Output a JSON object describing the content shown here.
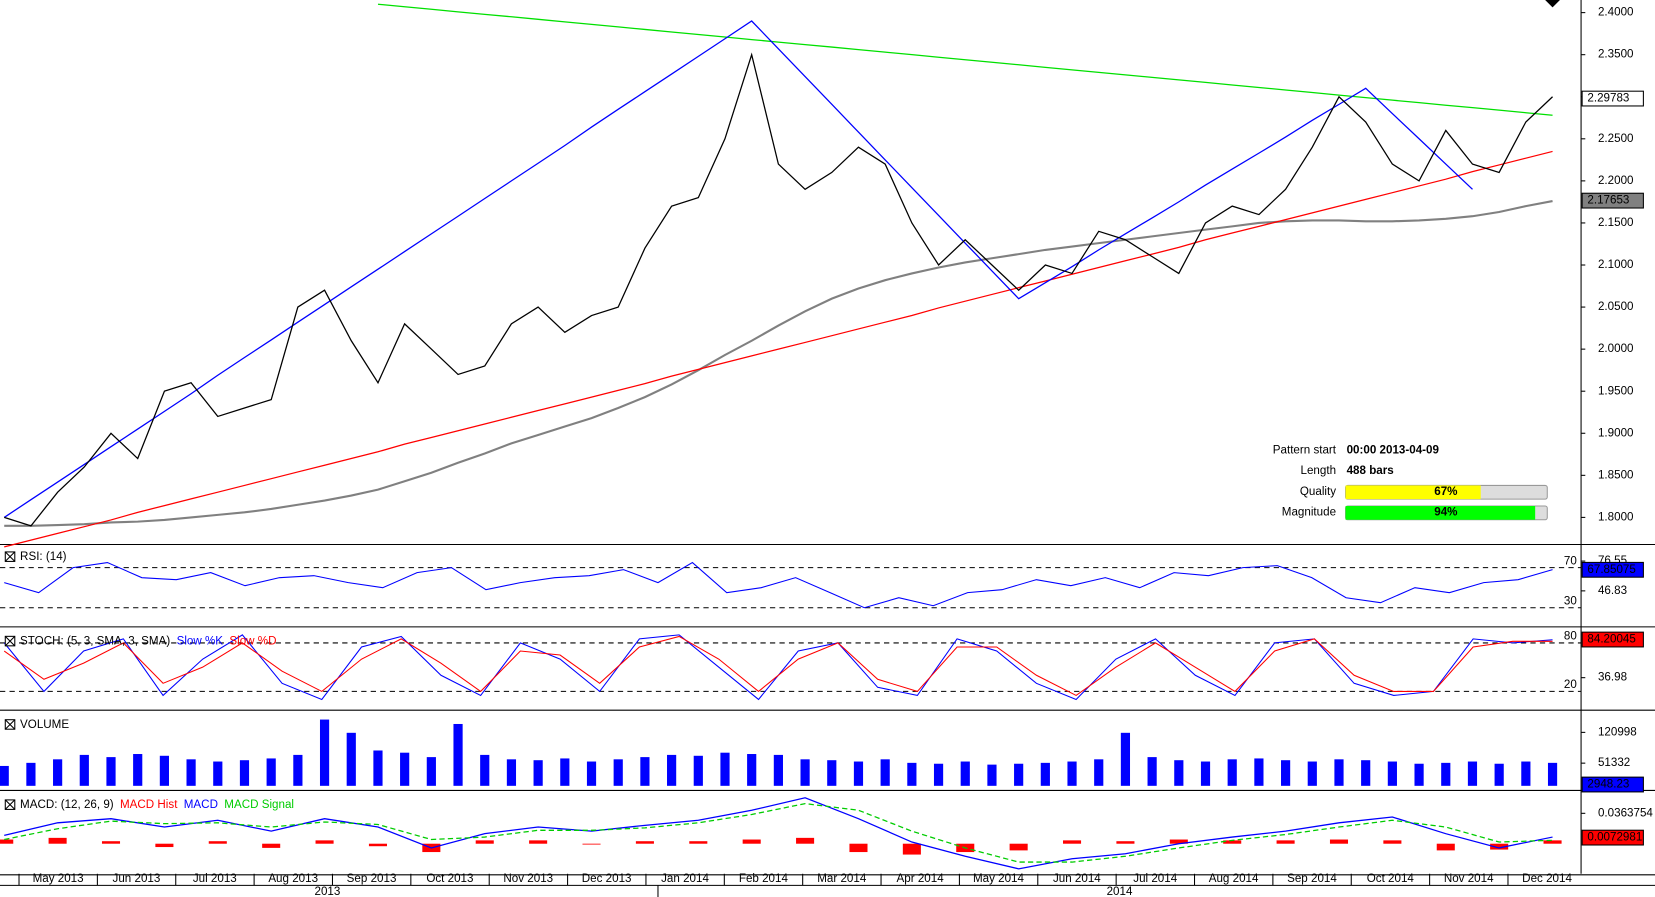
{
  "chart_data": [
    {
      "type": "line",
      "ylim": [
        1.769,
        2.415
      ],
      "yticks": [
        {
          "value": 1.8,
          "label": "1.8000"
        },
        {
          "value": 1.85,
          "label": "1.8500"
        },
        {
          "value": 1.9,
          "label": "1.9000"
        },
        {
          "value": 1.95,
          "label": "1.9500"
        },
        {
          "value": 2.0,
          "label": "2.0000"
        },
        {
          "value": 2.05,
          "label": "2.0500"
        },
        {
          "value": 2.1,
          "label": "2.1000"
        },
        {
          "value": 2.15,
          "label": "2.1500"
        },
        {
          "value": 2.2,
          "label": "2.2000"
        },
        {
          "value": 2.25,
          "label": "2.2500"
        },
        {
          "value": 2.3,
          "label": "2.3000"
        },
        {
          "value": 2.35,
          "label": "2.3500"
        },
        {
          "value": 2.4,
          "label": "2.4000"
        }
      ],
      "grid": false,
      "tags": [
        {
          "value": 2.29783,
          "color": "#ffffff",
          "text_color": "#000000"
        },
        {
          "value": 2.17653,
          "color": "#808080",
          "text_color": "#000000"
        }
      ],
      "series": [
        {
          "color": "#808080",
          "line_width": 2,
          "values": [
            1.79,
            1.79,
            1.791,
            1.792,
            1.794,
            1.795,
            1.797,
            1.8,
            1.803,
            1.806,
            1.81,
            1.815,
            1.82,
            1.826,
            1.833,
            1.843,
            1.853,
            1.865,
            1.876,
            1.888,
            1.898,
            1.908,
            1.918,
            1.93,
            1.943,
            1.958,
            1.975,
            1.993,
            2.01,
            2.028,
            2.045,
            2.06,
            2.072,
            2.082,
            2.09,
            2.097,
            2.103,
            2.108,
            2.113,
            2.118,
            2.122,
            2.126,
            2.13,
            2.134,
            2.138,
            2.142,
            2.146,
            2.15,
            2.152,
            2.153,
            2.153,
            2.152,
            2.152,
            2.153,
            2.155,
            2.158,
            2.163,
            2.17,
            2.176
          ]
        },
        {
          "color": "#ff0000",
          "line_width": 1.2,
          "values": [
            1.765,
            1.773,
            1.781,
            1.789,
            1.797,
            1.806,
            1.814,
            1.822,
            1.83,
            1.838,
            1.846,
            1.854,
            1.862,
            1.87,
            1.878,
            1.887,
            1.895,
            1.903,
            1.911,
            1.919,
            1.927,
            1.935,
            1.943,
            1.951,
            1.959,
            1.968,
            1.976,
            1.984,
            1.992,
            2.0,
            2.008,
            2.016,
            2.024,
            2.032,
            2.04,
            2.049,
            2.057,
            2.065,
            2.073,
            2.081,
            2.089,
            2.097,
            2.105,
            2.113,
            2.121,
            2.13,
            2.138,
            2.146,
            2.154,
            2.162,
            2.17,
            2.178,
            2.186,
            2.194,
            2.202,
            2.211,
            2.219,
            2.227,
            2.235
          ]
        },
        {
          "color": "#00e000",
          "line_width": 1.2,
          "values": [
            null,
            null,
            null,
            null,
            null,
            null,
            null,
            null,
            null,
            null,
            null,
            null,
            null,
            null,
            2.41,
            2.407,
            2.404,
            2.401,
            2.398,
            2.395,
            2.392,
            2.389,
            2.386,
            2.383,
            2.38,
            2.377,
            2.374,
            2.371,
            2.368,
            2.365,
            2.362,
            2.359,
            2.356,
            2.353,
            2.35,
            2.347,
            2.344,
            2.341,
            2.338,
            2.335,
            2.332,
            2.329,
            2.326,
            2.323,
            2.32,
            2.317,
            2.314,
            2.311,
            2.308,
            2.305,
            2.302,
            2.299,
            2.296,
            2.293,
            2.29,
            2.287,
            2.284,
            2.281,
            2.278
          ]
        },
        {
          "color": "#0000ff",
          "line_width": 1.2,
          "values": [
            1.8,
            1.821,
            1.842,
            1.863,
            1.884,
            1.905,
            1.926,
            1.947,
            1.969,
            1.99,
            2.011,
            2.032,
            2.053,
            2.074,
            2.095,
            2.116,
            2.137,
            2.158,
            2.179,
            2.2,
            2.221,
            2.242,
            2.264,
            2.285,
            2.306,
            2.327,
            2.348,
            2.369,
            2.39,
            2.357,
            2.324,
            2.291,
            2.258,
            2.225,
            2.192,
            2.159,
            2.126,
            2.093,
            2.06,
            2.079,
            2.098,
            2.118,
            2.137,
            2.156,
            2.175,
            2.195,
            2.214,
            2.233,
            2.252,
            2.272,
            2.291,
            2.31,
            2.28,
            2.25,
            2.22,
            2.19,
            null,
            null,
            null
          ]
        },
        {
          "color": "#000000",
          "line_width": 1.2,
          "values": [
            1.8,
            1.79,
            1.83,
            1.86,
            1.9,
            1.87,
            1.95,
            1.96,
            1.92,
            1.93,
            1.94,
            2.05,
            2.07,
            2.01,
            1.96,
            2.03,
            2.0,
            1.97,
            1.98,
            2.03,
            2.05,
            2.02,
            2.04,
            2.05,
            2.12,
            2.17,
            2.18,
            2.25,
            2.35,
            2.22,
            2.19,
            2.21,
            2.24,
            2.22,
            2.15,
            2.1,
            2.13,
            2.1,
            2.07,
            2.1,
            2.09,
            2.14,
            2.13,
            2.11,
            2.09,
            2.15,
            2.17,
            2.16,
            2.19,
            2.24,
            2.3,
            2.27,
            2.22,
            2.2,
            2.26,
            2.22,
            2.21,
            2.27,
            2.3
          ]
        }
      ]
    },
    {
      "type": "line",
      "title": "RSI: (14)",
      "ylim": [
        12,
        92
      ],
      "yticks": [
        76.55,
        46.83
      ],
      "levels": [
        70,
        30
      ],
      "tags": [
        {
          "value": 67.85075,
          "color": "#0000ff",
          "text_color": "#ffffff"
        }
      ],
      "series": [
        {
          "color": "#0000ff",
          "line_width": 1,
          "values": [
            55,
            45,
            70,
            75,
            60,
            58,
            65,
            52,
            60,
            62,
            55,
            50,
            65,
            70,
            48,
            55,
            60,
            62,
            68,
            55,
            75,
            45,
            50,
            60,
            45,
            30,
            40,
            32,
            45,
            48,
            58,
            52,
            60,
            50,
            65,
            62,
            70,
            72,
            60,
            40,
            35,
            50,
            45,
            55,
            58,
            68
          ]
        }
      ]
    },
    {
      "type": "line",
      "title": "STOCH: (5, 3, SMA, 3, SMA)",
      "ylim": [
        -2,
        96
      ],
      "yticks": [
        36.98
      ],
      "levels": [
        80,
        20
      ],
      "tags": [
        {
          "value": 84.20045,
          "color": "#ff0000",
          "text_color": "#ffffff"
        }
      ],
      "series": [
        {
          "name": "Slow %K",
          "color": "#0000ff",
          "line_width": 1,
          "values": [
            80,
            20,
            70,
            85,
            15,
            60,
            90,
            30,
            10,
            75,
            88,
            40,
            15,
            80,
            60,
            20,
            85,
            90,
            50,
            10,
            70,
            80,
            25,
            15,
            85,
            70,
            30,
            10,
            60,
            85,
            40,
            15,
            80,
            85,
            30,
            15,
            20,
            85,
            80,
            84
          ]
        },
        {
          "name": "Slow %D",
          "color": "#ff0000",
          "line_width": 1,
          "values": [
            70,
            35,
            55,
            80,
            30,
            50,
            80,
            45,
            20,
            60,
            85,
            55,
            20,
            70,
            65,
            30,
            75,
            88,
            60,
            20,
            60,
            80,
            35,
            20,
            75,
            75,
            40,
            15,
            50,
            80,
            50,
            20,
            70,
            85,
            40,
            20,
            20,
            75,
            82,
            82
          ]
        }
      ]
    },
    {
      "type": "bar",
      "title": "VOLUME",
      "ylim": [
        -8000,
        164000
      ],
      "yticks": [
        120998,
        51332
      ],
      "tags": [
        {
          "value": 2948.23,
          "color": "#0000ff",
          "text_color": "#ffffff"
        }
      ],
      "series": [
        {
          "color": "#0000ff",
          "values": [
            45000,
            52000,
            60000,
            70000,
            65000,
            72000,
            68000,
            60000,
            55000,
            58000,
            62000,
            70000,
            150000,
            120000,
            80000,
            75000,
            65000,
            140000,
            70000,
            60000,
            58000,
            62000,
            55000,
            60000,
            65000,
            70000,
            68000,
            75000,
            72000,
            70000,
            60000,
            58000,
            55000,
            60000,
            52000,
            50000,
            55000,
            48000,
            50000,
            52000,
            55000,
            60000,
            120000,
            65000,
            58000,
            55000,
            60000,
            62000,
            58000,
            55000,
            60000,
            58000,
            55000,
            50000,
            52000,
            55000,
            50000,
            55000,
            52000
          ]
        }
      ]
    },
    {
      "type": "line",
      "title": "MACD: (12, 26, 9)",
      "ylim": [
        -0.036,
        0.06
      ],
      "yticks": [
        0.0363754
      ],
      "tags": [
        {
          "value": 0.0072981,
          "color": "#ff0000",
          "text_color": "#ffffff"
        }
      ],
      "series": [
        {
          "name": "MACD Hist",
          "type": "bar",
          "color": "#ff0000",
          "values": [
            0.005,
            0.007,
            0.003,
            -0.004,
            0.003,
            -0.005,
            0.004,
            -0.003,
            -0.01,
            0.004,
            0.004,
            -0.001,
            0.003,
            0.003,
            0.005,
            0.007,
            -0.01,
            -0.013,
            -0.01,
            -0.008,
            0.004,
            0.003,
            0.005,
            0.004,
            0.004,
            0.005,
            0.004,
            -0.008,
            -0.007,
            0.004
          ]
        },
        {
          "name": "MACD",
          "color": "#0000ff",
          "line_width": 1.2,
          "values": [
            0.01,
            0.025,
            0.03,
            0.02,
            0.028,
            0.015,
            0.03,
            0.02,
            -0.005,
            0.012,
            0.02,
            0.015,
            0.022,
            0.028,
            0.04,
            0.055,
            0.03,
            0.002,
            -0.015,
            -0.03,
            -0.018,
            -0.012,
            0.0,
            0.008,
            0.015,
            0.025,
            0.032,
            0.012,
            -0.005,
            0.008
          ]
        },
        {
          "name": "MACD Signal",
          "color": "#00cc00",
          "line_width": 1.2,
          "dashed": true,
          "values": [
            0.005,
            0.018,
            0.027,
            0.024,
            0.025,
            0.02,
            0.026,
            0.023,
            0.005,
            0.008,
            0.016,
            0.016,
            0.019,
            0.025,
            0.035,
            0.048,
            0.04,
            0.015,
            -0.005,
            -0.022,
            -0.022,
            -0.015,
            -0.005,
            0.004,
            0.011,
            0.02,
            0.028,
            0.02,
            0.002,
            0.004
          ]
        }
      ]
    }
  ],
  "x_axis": {
    "months": [
      "May 2013",
      "Jun 2013",
      "Jul 2013",
      "Aug 2013",
      "Sep 2013",
      "Oct 2013",
      "Nov 2013",
      "Dec 2013",
      "Jan 2014",
      "Feb 2014",
      "Mar 2014",
      "Apr 2014",
      "May 2014",
      "Jun 2014",
      "Jul 2014",
      "Aug 2014",
      "Sep 2014",
      "Oct 2014",
      "Nov 2014",
      "Dec 2014"
    ],
    "years": [
      "2013",
      "2014"
    ]
  },
  "pattern": [
    {
      "label": "Pattern start",
      "value": "00:00 2013-04-09"
    },
    {
      "label": "Length",
      "value": "488 bars"
    },
    {
      "label": "Quality",
      "value": 67,
      "value_label": "67%",
      "color": "#ffff00"
    },
    {
      "label": "Magnitude",
      "value": 94,
      "value_label": "94%",
      "color": "#00ff00"
    }
  ]
}
